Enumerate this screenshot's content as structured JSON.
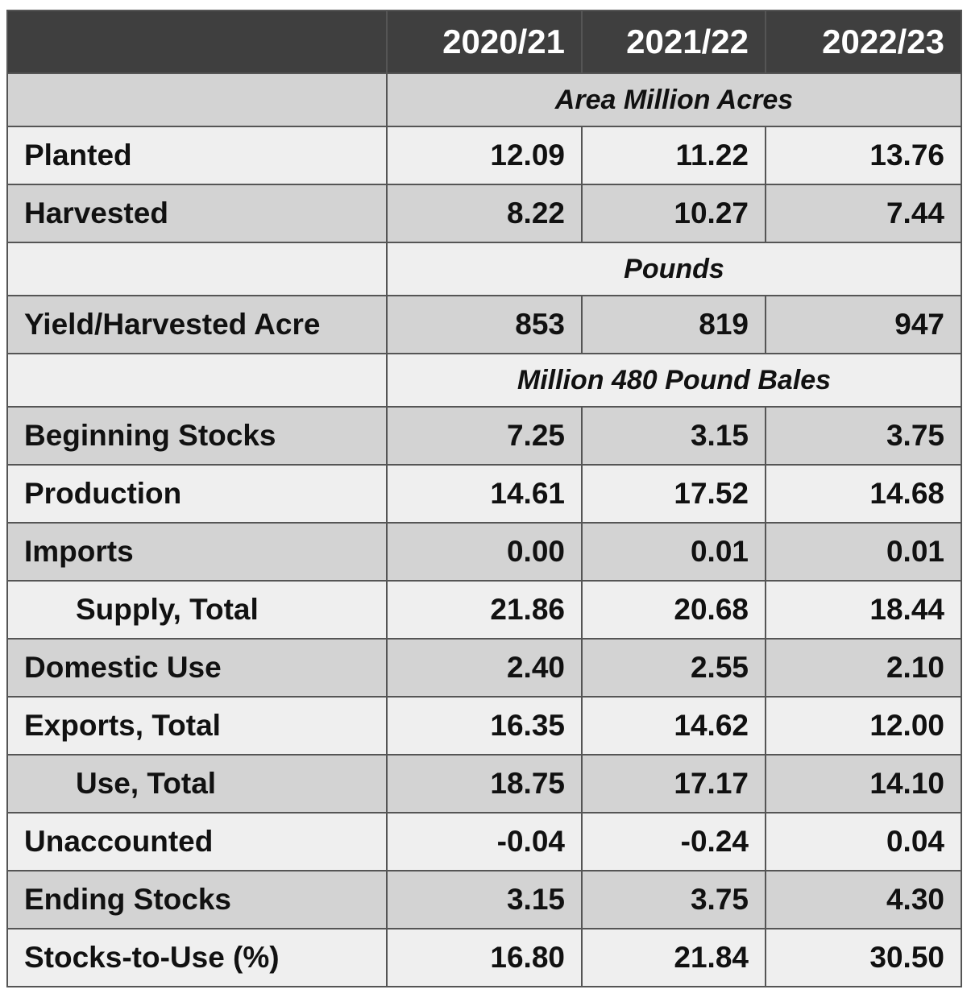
{
  "table": {
    "columns": [
      "2020/21",
      "2021/22",
      "2022/23"
    ],
    "rows": [
      {
        "unit": "Area Million Acres"
      },
      {
        "label": "Planted",
        "values": [
          "12.09",
          "11.22",
          "13.76"
        ]
      },
      {
        "label": "Harvested",
        "values": [
          "8.22",
          "10.27",
          "7.44"
        ]
      },
      {
        "unit": "Pounds"
      },
      {
        "label": "Yield/Harvested Acre",
        "values": [
          "853",
          "819",
          "947"
        ]
      },
      {
        "unit": "Million 480 Pound Bales"
      },
      {
        "label": "Beginning Stocks",
        "values": [
          "7.25",
          "3.15",
          "3.75"
        ]
      },
      {
        "label": "Production",
        "values": [
          "14.61",
          "17.52",
          "14.68"
        ]
      },
      {
        "label": "Imports",
        "values": [
          "0.00",
          "0.01",
          "0.01"
        ]
      },
      {
        "label": "Supply, Total",
        "indent": true,
        "values": [
          "21.86",
          "20.68",
          "18.44"
        ]
      },
      {
        "label": "Domestic Use",
        "values": [
          "2.40",
          "2.55",
          "2.10"
        ]
      },
      {
        "label": "Exports, Total",
        "values": [
          "16.35",
          "14.62",
          "12.00"
        ]
      },
      {
        "label": "Use, Total",
        "indent": true,
        "values": [
          "18.75",
          "17.17",
          "14.10"
        ]
      },
      {
        "label": "Unaccounted",
        "values": [
          "-0.04",
          "-0.24",
          "0.04"
        ]
      },
      {
        "label": "Ending Stocks",
        "values": [
          "3.15",
          "3.75",
          "4.30"
        ]
      },
      {
        "label": "Stocks-to-Use (%)",
        "values": [
          "16.80",
          "21.84",
          "30.50"
        ]
      }
    ]
  }
}
